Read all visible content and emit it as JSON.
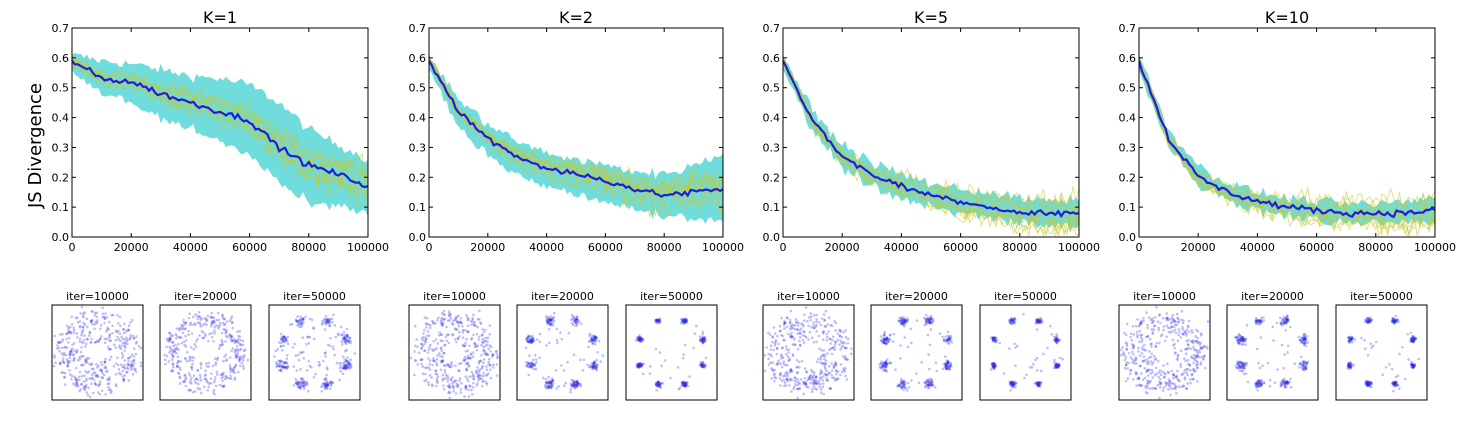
{
  "figure": {
    "ylabel": "JS Divergence"
  },
  "chart_data": [
    {
      "type": "line",
      "title": "K=1",
      "xlabel": "",
      "ylabel": "JS Divergence",
      "xlim": [
        0,
        100000
      ],
      "ylim": [
        0,
        0.7
      ],
      "xticks": [
        "0",
        "20000",
        "40000",
        "60000",
        "80000",
        "100000"
      ],
      "yticks": [
        "0.0",
        "0.1",
        "0.2",
        "0.3",
        "0.4",
        "0.5",
        "0.6",
        "0.7"
      ],
      "grid": false,
      "x": [
        0,
        10000,
        20000,
        30000,
        40000,
        50000,
        60000,
        70000,
        80000,
        90000,
        100000
      ],
      "series": [
        {
          "values": [
            0.59,
            0.53,
            0.52,
            0.48,
            0.45,
            0.42,
            0.39,
            0.3,
            0.24,
            0.21,
            0.17
          ],
          "color": "#1f1fd6"
        }
      ],
      "band": {
        "upper": [
          0.61,
          0.59,
          0.58,
          0.56,
          0.54,
          0.53,
          0.51,
          0.45,
          0.36,
          0.31,
          0.26
        ],
        "lower": [
          0.56,
          0.48,
          0.45,
          0.4,
          0.36,
          0.32,
          0.28,
          0.18,
          0.12,
          0.1,
          0.07
        ],
        "color": "#40d0d0"
      },
      "thumbnails": [
        {
          "label": "iter=10000",
          "pattern": "ring-diffuse"
        },
        {
          "label": "iter=20000",
          "pattern": "ring-partial"
        },
        {
          "label": "iter=50000",
          "pattern": "ring-blobs"
        }
      ]
    },
    {
      "type": "line",
      "title": "K=2",
      "xlabel": "",
      "ylabel": "",
      "xlim": [
        0,
        100000
      ],
      "ylim": [
        0,
        0.7
      ],
      "xticks": [
        "0",
        "20000",
        "40000",
        "60000",
        "80000",
        "100000"
      ],
      "yticks": [
        "0.0",
        "0.1",
        "0.2",
        "0.3",
        "0.4",
        "0.5",
        "0.6",
        "0.7"
      ],
      "grid": false,
      "x": [
        0,
        10000,
        20000,
        30000,
        40000,
        50000,
        60000,
        70000,
        80000,
        90000,
        100000
      ],
      "series": [
        {
          "values": [
            0.59,
            0.42,
            0.33,
            0.27,
            0.23,
            0.21,
            0.19,
            0.16,
            0.14,
            0.15,
            0.16
          ],
          "color": "#1f1fd6"
        }
      ],
      "band": {
        "upper": [
          0.61,
          0.46,
          0.38,
          0.32,
          0.28,
          0.26,
          0.24,
          0.22,
          0.21,
          0.24,
          0.28
        ],
        "lower": [
          0.56,
          0.37,
          0.27,
          0.21,
          0.17,
          0.14,
          0.12,
          0.09,
          0.07,
          0.06,
          0.05
        ],
        "color": "#40d0d0"
      },
      "thumbnails": [
        {
          "label": "iter=10000",
          "pattern": "ring-diffuse"
        },
        {
          "label": "iter=20000",
          "pattern": "modes-8"
        },
        {
          "label": "iter=50000",
          "pattern": "modes-8-tight"
        }
      ]
    },
    {
      "type": "line",
      "title": "K=5",
      "xlabel": "",
      "ylabel": "",
      "xlim": [
        0,
        100000
      ],
      "ylim": [
        0,
        0.7
      ],
      "xticks": [
        "0",
        "20000",
        "40000",
        "60000",
        "80000",
        "100000"
      ],
      "yticks": [
        "0.0",
        "0.1",
        "0.2",
        "0.3",
        "0.4",
        "0.5",
        "0.6",
        "0.7"
      ],
      "grid": false,
      "x": [
        0,
        10000,
        20000,
        30000,
        40000,
        50000,
        60000,
        70000,
        80000,
        90000,
        100000
      ],
      "series": [
        {
          "values": [
            0.59,
            0.39,
            0.27,
            0.21,
            0.17,
            0.14,
            0.12,
            0.1,
            0.08,
            0.08,
            0.08
          ],
          "color": "#1f1fd6"
        }
      ],
      "band": {
        "upper": [
          0.61,
          0.42,
          0.31,
          0.25,
          0.21,
          0.18,
          0.16,
          0.15,
          0.13,
          0.12,
          0.12
        ],
        "lower": [
          0.56,
          0.36,
          0.23,
          0.17,
          0.13,
          0.1,
          0.08,
          0.06,
          0.05,
          0.04,
          0.04
        ],
        "color": "#40d0d0"
      },
      "thumbnails": [
        {
          "label": "iter=10000",
          "pattern": "ring-diffuse"
        },
        {
          "label": "iter=20000",
          "pattern": "modes-8"
        },
        {
          "label": "iter=50000",
          "pattern": "modes-8-tight"
        }
      ]
    },
    {
      "type": "line",
      "title": "K=10",
      "xlabel": "",
      "ylabel": "",
      "xlim": [
        0,
        100000
      ],
      "ylim": [
        0,
        0.7
      ],
      "xticks": [
        "0",
        "20000",
        "40000",
        "60000",
        "80000",
        "100000"
      ],
      "yticks": [
        "0.0",
        "0.1",
        "0.2",
        "0.3",
        "0.4",
        "0.5",
        "0.6",
        "0.7"
      ],
      "grid": false,
      "x": [
        0,
        10000,
        20000,
        30000,
        40000,
        50000,
        60000,
        70000,
        80000,
        90000,
        100000
      ],
      "series": [
        {
          "values": [
            0.59,
            0.33,
            0.2,
            0.15,
            0.12,
            0.1,
            0.09,
            0.08,
            0.08,
            0.08,
            0.09
          ],
          "color": "#1f1fd6"
        }
      ],
      "band": {
        "upper": [
          0.61,
          0.36,
          0.24,
          0.18,
          0.15,
          0.13,
          0.12,
          0.11,
          0.11,
          0.12,
          0.13
        ],
        "lower": [
          0.56,
          0.3,
          0.17,
          0.12,
          0.09,
          0.07,
          0.06,
          0.05,
          0.05,
          0.05,
          0.05
        ],
        "color": "#40d0d0"
      },
      "thumbnails": [
        {
          "label": "iter=10000",
          "pattern": "ring-diffuse"
        },
        {
          "label": "iter=20000",
          "pattern": "modes-8"
        },
        {
          "label": "iter=50000",
          "pattern": "modes-8-tight"
        }
      ]
    }
  ]
}
